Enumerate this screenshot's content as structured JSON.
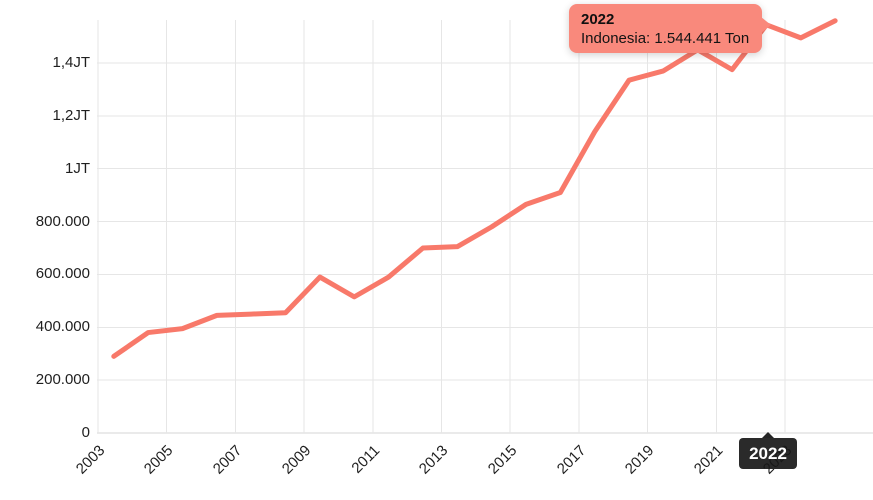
{
  "chart_data": {
    "type": "line",
    "title": "",
    "unit": "Ton",
    "series": [
      {
        "name": "Indonesia",
        "x": [
          2003,
          2004,
          2005,
          2006,
          2007,
          2008,
          2009,
          2010,
          2011,
          2012,
          2013,
          2014,
          2015,
          2016,
          2017,
          2018,
          2019,
          2020,
          2021,
          2022,
          2023,
          2024
        ],
        "values": [
          290000,
          380000,
          395000,
          445000,
          450000,
          455000,
          590000,
          515000,
          590000,
          700000,
          705000,
          780000,
          865000,
          910000,
          1140000,
          1335000,
          1370000,
          1450000,
          1375000,
          1544441,
          1495000,
          1560000
        ]
      }
    ],
    "x_ticks": [
      2003,
      2005,
      2007,
      2009,
      2011,
      2013,
      2015,
      2017,
      2019,
      2021,
      2023
    ],
    "y_ticks": [
      {
        "value": 0,
        "label": "0"
      },
      {
        "value": 200000,
        "label": "200.000"
      },
      {
        "value": 400000,
        "label": "400.000"
      },
      {
        "value": 600000,
        "label": "600.000"
      },
      {
        "value": 800000,
        "label": "800.000"
      },
      {
        "value": 1000000,
        "label": "1JT"
      },
      {
        "value": 1200000,
        "label": "1,2JT"
      },
      {
        "value": 1400000,
        "label": "1,4JT"
      }
    ],
    "ylim": [
      0,
      1600000
    ],
    "xlim": [
      2003,
      2025
    ],
    "grid": true,
    "legend_position": "none",
    "highlighted_point": {
      "year": 2022,
      "series": "Indonesia",
      "value": 1544441
    }
  },
  "tooltip": {
    "year": "2022",
    "text": "Indonesia: 1.544.441 Ton"
  },
  "x_marker": {
    "label": "2022"
  },
  "colors": {
    "line": "#f8796a",
    "tooltip_bg": "#f9897c",
    "grid": "#e6e6e6",
    "axis_line": "#d6d6d6",
    "axis_text": "#1f1f1f",
    "marker_bg": "#181818",
    "marker_text": "#ffffff"
  }
}
